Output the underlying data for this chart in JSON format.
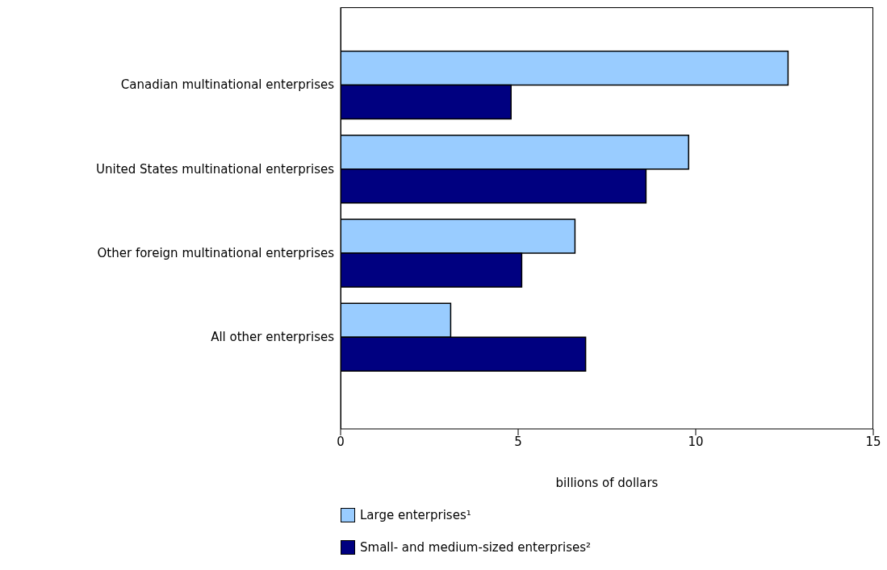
{
  "chart_data": {
    "type": "bar",
    "orientation": "horizontal",
    "xlabel": "billions of dollars",
    "categories": [
      "Canadian multinational enterprises",
      "United States multinational enterprises",
      "Other foreign multinational enterprises",
      "All other enterprises"
    ],
    "series": [
      {
        "name": "Large enterprises¹",
        "color": "#99ccff",
        "values": [
          12.6,
          9.8,
          6.6,
          3.1
        ]
      },
      {
        "name": "Small- and medium-sized enterprises²",
        "color": "#000080",
        "values": [
          4.8,
          8.6,
          5.1,
          6.9
        ]
      }
    ],
    "xlim": [
      0,
      15
    ],
    "xticks": [
      0,
      5,
      10,
      15
    ],
    "legend": "bottom"
  }
}
